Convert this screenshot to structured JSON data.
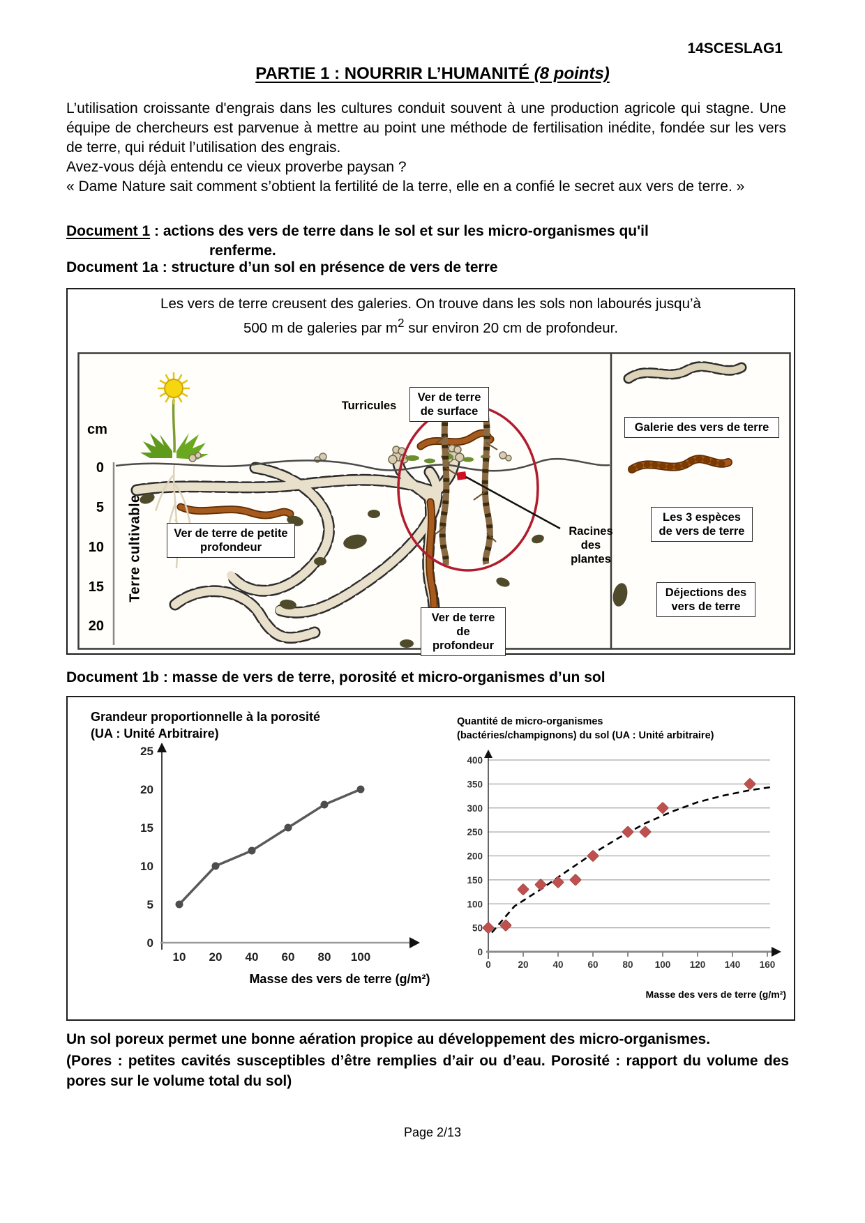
{
  "page": {
    "code": "14SCESLAG1",
    "footer": "Page 2/13"
  },
  "title": {
    "main": "PARTIE 1 : NOURRIR L’HUMANITÉ",
    "points": " (8 points)"
  },
  "intro": {
    "p1": "L’utilisation croissante d'engrais dans les cultures conduit souvent à une production agricole qui stagne. Une équipe de chercheurs est parvenue à mettre au point une méthode de fertilisation inédite, fondée sur les vers de terre, qui réduit l’utilisation des engrais.",
    "p2": "Avez-vous déjà entendu ce vieux proverbe paysan ?",
    "p3": "« Dame Nature sait comment s’obtient la fertilité de la terre, elle en a confié le secret aux vers de terre. »"
  },
  "doc1": {
    "label": "Document 1",
    "rest": " : actions des vers de terre dans le sol et sur les micro-organismes qu'il",
    "line2": "renferme.",
    "doc1a": "Document 1a : structure d’un sol en présence de vers de terre"
  },
  "fig1a": {
    "caption1": "Les vers de terre creusent des galeries. On trouve dans les sols non labourés jusqu’à",
    "caption2_pre": "500 m de galeries par m",
    "caption2_sup": "2",
    "caption2_post": " sur environ 20 cm de profondeur.",
    "unit": "cm",
    "depth_ticks": [
      "0",
      "5",
      "10",
      "15",
      "20"
    ],
    "soil": "Terre cultivable",
    "labels": {
      "surface": "Ver de terre de surface",
      "turricules": "Turricules",
      "petite": "Ver de terre de petite profondeur",
      "profondeur": "Ver de terre de profondeur",
      "racines": "Racines des plantes",
      "galerie": "Galerie des vers de terre",
      "especes": "Les 3 espèces de vers de terre",
      "dejections": "Déjections des vers de terre"
    }
  },
  "doc1b_title": "Document 1b : masse de vers de terre, porosité et micro-organismes d’un sol",
  "chart_data": [
    {
      "type": "line",
      "title_line1": "Grandeur proportionnelle à la porosité",
      "title_line2": "(UA : Unité Arbitraire)",
      "xlabel": "Masse des vers de terre (g/m²)",
      "x": [
        10,
        20,
        40,
        60,
        80,
        100
      ],
      "y": [
        5,
        10,
        12,
        15,
        18,
        20
      ],
      "y_ticks": [
        0,
        5,
        10,
        15,
        20,
        25
      ],
      "ylim": [
        0,
        25
      ],
      "x_spacing": "categorical",
      "grid": false,
      "line_color": "#595959"
    },
    {
      "type": "scatter",
      "title_line1": "Quantité de micro-organismes",
      "title_line2": "(bactéries/champignons) du sol (UA : Unité arbitraire)",
      "xlabel": "Masse des vers de terre (g/m²)",
      "points": [
        [
          0,
          50
        ],
        [
          10,
          55
        ],
        [
          20,
          130
        ],
        [
          30,
          140
        ],
        [
          40,
          145
        ],
        [
          50,
          150
        ],
        [
          60,
          200
        ],
        [
          80,
          250
        ],
        [
          90,
          250
        ],
        [
          100,
          300
        ],
        [
          150,
          350
        ]
      ],
      "trend": [
        [
          2,
          40
        ],
        [
          15,
          95
        ],
        [
          30,
          130
        ],
        [
          45,
          168
        ],
        [
          60,
          205
        ],
        [
          75,
          238
        ],
        [
          90,
          268
        ],
        [
          105,
          292
        ],
        [
          120,
          312
        ],
        [
          135,
          326
        ],
        [
          150,
          337
        ],
        [
          163,
          344
        ]
      ],
      "x_ticks": [
        0,
        20,
        40,
        60,
        80,
        100,
        120,
        140,
        160
      ],
      "y_ticks": [
        0,
        50,
        100,
        150,
        200,
        250,
        300,
        350,
        400
      ],
      "xlim": [
        0,
        165
      ],
      "ylim": [
        0,
        400
      ],
      "grid": true,
      "marker_color": "#c0504d",
      "trend_style": "dashed"
    }
  ],
  "note": {
    "p1": "Un sol poreux permet une bonne aération propice au développement des micro-organismes.",
    "p2": "(Pores : petites cavités susceptibles d’être remplies d’air ou d’eau. Porosité : rapport du volume des pores sur le volume total du sol)"
  }
}
